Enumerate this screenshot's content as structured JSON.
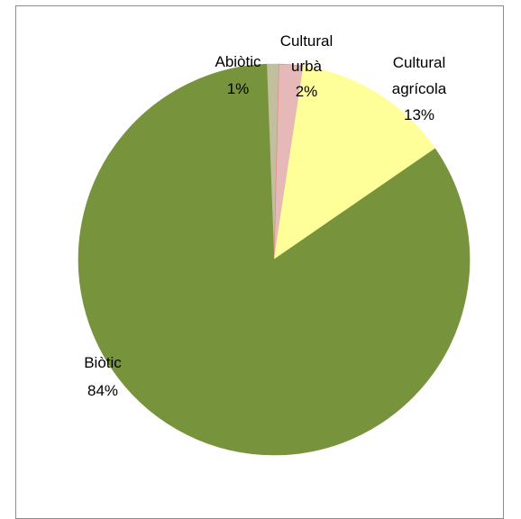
{
  "chart_data": {
    "type": "pie",
    "title": "",
    "legend": "none",
    "slices": [
      {
        "label": "Abiòtic",
        "percent_label": "1%",
        "value": 1,
        "color": "#c2bf9e"
      },
      {
        "label": "Cultural urbà",
        "percent_label": "2%",
        "value": 2,
        "color": "#e6b9b8"
      },
      {
        "label": "Cultural agrícola",
        "percent_label": "13%",
        "value": 13,
        "color": "#ffff99"
      },
      {
        "label": "Biòtic",
        "percent_label": "84%",
        "value": 84,
        "color": "#77933c"
      }
    ]
  }
}
